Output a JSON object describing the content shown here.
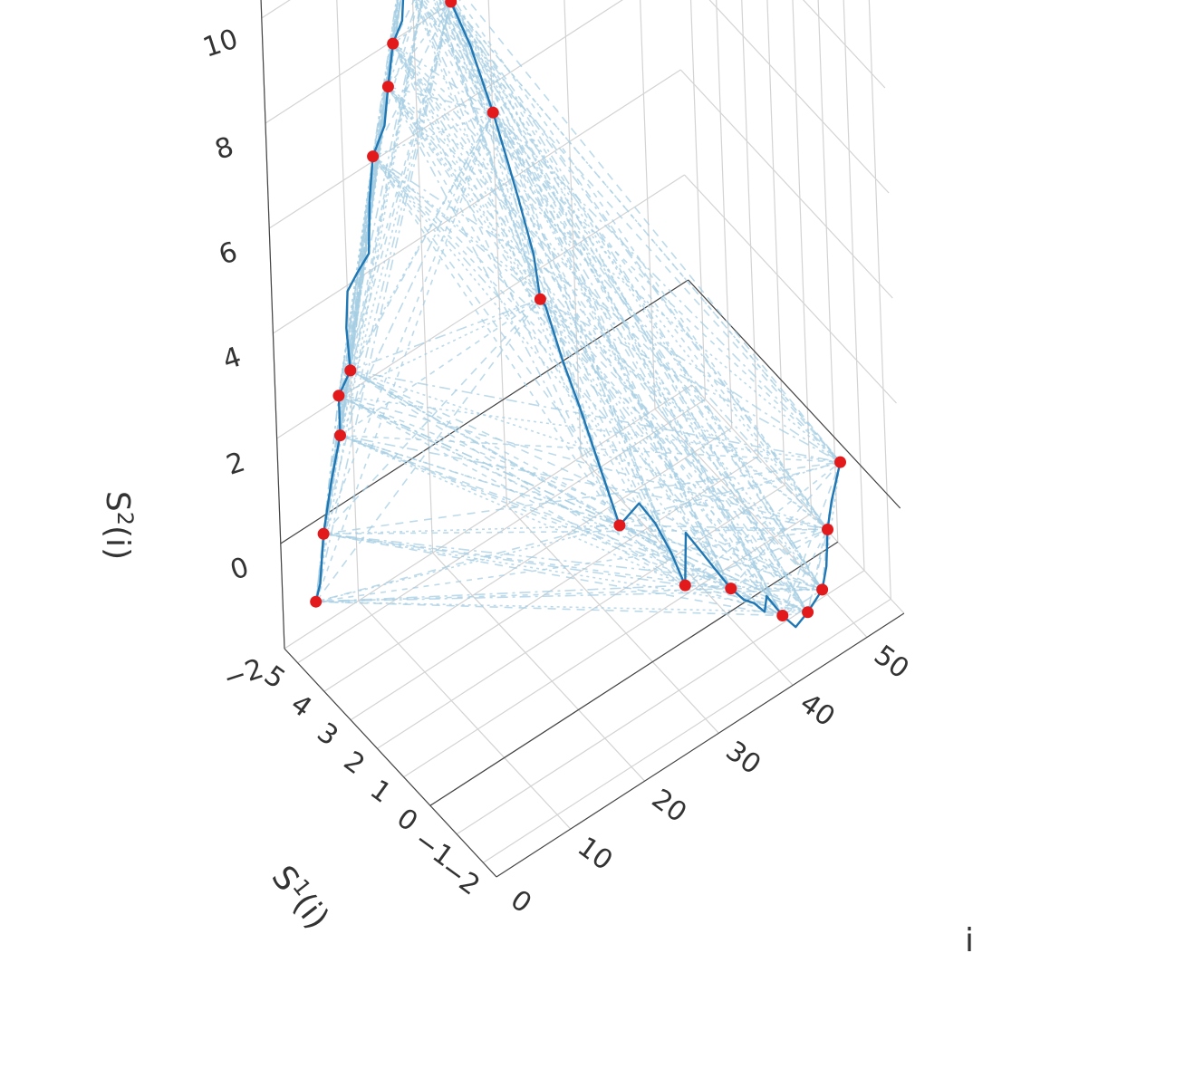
{
  "chart_data": {
    "type": "scatter3d",
    "axes": {
      "x": {
        "title_base": "i",
        "title_sup": "",
        "title_suffix": "",
        "ticks": [
          "0",
          "10",
          "20",
          "30",
          "40",
          "50"
        ],
        "range": [
          0,
          55
        ]
      },
      "y": {
        "title_base": "S",
        "title_sup": "1",
        "title_suffix": "(i)",
        "ticks": [
          "−2",
          "−1",
          "0",
          "1",
          "2",
          "3",
          "4",
          "5"
        ],
        "range": [
          -2.5,
          5.5
        ]
      },
      "z": {
        "title_base": "S",
        "title_sup": "2",
        "title_suffix": "(i)",
        "ticks": [
          "−2",
          "0",
          "2",
          "4",
          "6",
          "8",
          "10"
        ],
        "range": [
          -2,
          11
        ]
      }
    },
    "grid": true,
    "colors": {
      "trajectory": "#1f77b4",
      "connections": "#a6cee3",
      "points": "#e31a1c",
      "grid": "#d3d3d3",
      "axis": "#444444",
      "text": "#333333"
    },
    "series": [
      {
        "type": "line",
        "points": [
          [
            0,
            4.2,
            -0.4
          ],
          [
            1,
            4.3,
            -0.2
          ],
          [
            2,
            4.4,
            0.6
          ],
          [
            3,
            4.3,
            1.6
          ],
          [
            4,
            4.2,
            2.4
          ],
          [
            5,
            4.5,
            2.9
          ],
          [
            6,
            4.3,
            3.4
          ],
          [
            7,
            4.7,
            3.9
          ],
          [
            8,
            4.9,
            4.4
          ],
          [
            9,
            4.8,
            4.7
          ],
          [
            10,
            4.6,
            5.1
          ],
          [
            11,
            4.8,
            5.9
          ],
          [
            12,
            4.9,
            6.6
          ],
          [
            13,
            4.7,
            7.2
          ],
          [
            14,
            4.8,
            7.8
          ],
          [
            15,
            4.85,
            8.5
          ],
          [
            16,
            4.75,
            8.9
          ],
          [
            17,
            4.9,
            9.6
          ],
          [
            18,
            5.0,
            10.4
          ],
          [
            18.3,
            5.0,
            10.3
          ],
          [
            19,
            4.6,
            9.6
          ],
          [
            20,
            4.0,
            9.3
          ],
          [
            21,
            3.6,
            8.6
          ],
          [
            22,
            3.1,
            7.5
          ],
          [
            23,
            2.9,
            6.6
          ],
          [
            24,
            2.8,
            5.8
          ],
          [
            25,
            2.6,
            4.8
          ],
          [
            26,
            2.7,
            3.8
          ],
          [
            26.3,
            2.6,
            3.7
          ],
          [
            27,
            2.2,
            2.8
          ],
          [
            28,
            1.9,
            2.0
          ],
          [
            29,
            1.5,
            1.0
          ],
          [
            30,
            1.1,
            0.0
          ],
          [
            31,
            0.6,
            0.6
          ],
          [
            32,
            0.3,
            0.3
          ],
          [
            33,
            0.0,
            -0.2
          ],
          [
            34,
            -0.2,
            -0.8
          ],
          [
            35,
            0.0,
            0.0
          ],
          [
            36,
            -0.3,
            -0.3
          ],
          [
            37,
            -0.5,
            -0.6
          ],
          [
            38,
            -0.8,
            -0.9
          ],
          [
            39,
            -1.0,
            -1.1
          ],
          [
            40,
            -1.1,
            -1.2
          ],
          [
            41,
            -1.2,
            -1.4
          ],
          [
            42,
            -1.0,
            -1.3
          ],
          [
            43,
            -1.3,
            -1.6
          ],
          [
            44,
            -1.5,
            -1.8
          ],
          [
            45,
            -1.7,
            -1.5
          ],
          [
            46,
            -2.0,
            -1.0
          ],
          [
            47,
            -1.9,
            -0.7
          ],
          [
            48,
            -1.7,
            -0.2
          ],
          [
            49,
            -1.6,
            0.2
          ],
          [
            50,
            -1.7,
            0.9
          ]
        ]
      },
      {
        "type": "markers",
        "points": [
          [
            0,
            4.2,
            -0.4
          ],
          [
            2,
            4.4,
            0.6
          ],
          [
            4,
            4.2,
            2.4
          ],
          [
            5,
            4.5,
            2.9
          ],
          [
            6,
            4.3,
            3.4
          ],
          [
            12,
            4.9,
            6.6
          ],
          [
            14,
            4.8,
            7.8
          ],
          [
            15,
            4.85,
            8.5
          ],
          [
            17,
            4.9,
            9.6
          ],
          [
            18,
            5.0,
            10.4
          ],
          [
            19,
            4.6,
            9.6
          ],
          [
            20,
            4.0,
            9.3
          ],
          [
            22,
            3.1,
            7.5
          ],
          [
            26,
            2.7,
            3.8
          ],
          [
            30,
            1.1,
            0.0
          ],
          [
            34,
            -0.2,
            -0.8
          ],
          [
            38,
            -0.8,
            -0.9
          ],
          [
            43,
            -1.3,
            -1.6
          ],
          [
            45,
            -1.7,
            -1.5
          ],
          [
            46,
            -2.0,
            -1.0
          ],
          [
            48,
            -1.7,
            -0.2
          ],
          [
            50,
            -1.7,
            0.9
          ]
        ]
      }
    ]
  }
}
